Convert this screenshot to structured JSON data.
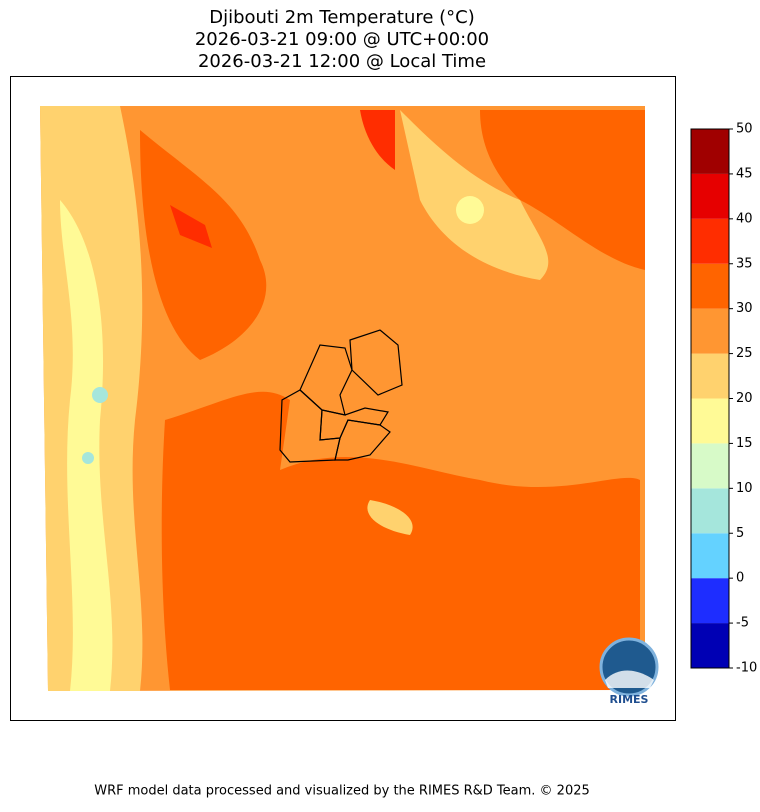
{
  "title": [
    "Djibouti 2m Temperature (°C)",
    "2026-03-21 09:00 @ UTC+00:00",
    "2026-03-21 12:00 @ Local Time"
  ],
  "colorbar": {
    "lim": [
      -10,
      50
    ],
    "ticks": [
      -10,
      -5,
      0,
      5,
      10,
      15,
      20,
      25,
      30,
      35,
      40,
      45,
      50
    ],
    "colors": [
      "#0000b4",
      "#1e2dff",
      "#64d2ff",
      "#a5e6dc",
      "#d7fac8",
      "#fffa96",
      "#ffd26e",
      "#ff9632",
      "#ff6400",
      "#ff2d00",
      "#e60000",
      "#a00000"
    ]
  },
  "logo": "RIMES",
  "footer": "WRF model data processed and visualized by the RIMES R&D Team. © 2025"
}
